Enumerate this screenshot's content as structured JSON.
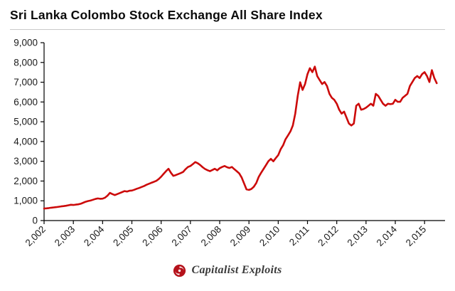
{
  "title": "Sri Lanka Colombo Stock Exchange All Share Index",
  "footer": {
    "brand": "Capitalist Exploits",
    "logo_icon": "capitalist-exploits-swirl-icon"
  },
  "colors": {
    "line": "#cc0a0a",
    "axis": "#000000",
    "tick_text": "#1a1a1a",
    "divider": "#c9c9c9",
    "logo": "#b5121b",
    "brand_text": "#3a3a3a"
  },
  "chart_data": {
    "type": "line",
    "title": "Sri Lanka Colombo Stock Exchange All Share Index",
    "xlabel": "",
    "ylabel": "",
    "legend": null,
    "grid": false,
    "line_color": "#cc0a0a",
    "ylim": [
      0,
      9000
    ],
    "xlim": [
      2002,
      2015.7
    ],
    "yticks": [
      0,
      1000,
      2000,
      3000,
      4000,
      5000,
      6000,
      7000,
      8000,
      9000
    ],
    "xticks": [
      2002,
      2003,
      2004,
      2005,
      2006,
      2007,
      2008,
      2009,
      2010,
      2011,
      2012,
      2013,
      2014,
      2015
    ],
    "x_start": 2002.0,
    "x_step": 0.08333,
    "x_unit": "monthly (Jan 2002 - Jun 2015), decimal years",
    "values": [
      610,
      620,
      635,
      650,
      665,
      680,
      700,
      715,
      730,
      750,
      775,
      800,
      790,
      805,
      820,
      850,
      900,
      950,
      985,
      1010,
      1050,
      1090,
      1120,
      1100,
      1110,
      1160,
      1260,
      1400,
      1340,
      1290,
      1340,
      1390,
      1440,
      1490,
      1470,
      1510,
      1520,
      1560,
      1610,
      1650,
      1700,
      1750,
      1810,
      1860,
      1910,
      1960,
      2010,
      2100,
      2220,
      2360,
      2500,
      2620,
      2420,
      2260,
      2300,
      2350,
      2400,
      2460,
      2600,
      2710,
      2760,
      2860,
      2960,
      2900,
      2810,
      2700,
      2610,
      2550,
      2500,
      2560,
      2620,
      2540,
      2650,
      2710,
      2760,
      2700,
      2660,
      2710,
      2600,
      2500,
      2390,
      2180,
      1880,
      1580,
      1550,
      1600,
      1710,
      1900,
      2210,
      2420,
      2610,
      2810,
      3010,
      3120,
      3000,
      3160,
      3310,
      3610,
      3810,
      4110,
      4310,
      4510,
      4810,
      5410,
      6310,
      7000,
      6610,
      6910,
      7410,
      7710,
      7510,
      7790,
      7310,
      7110,
      6910,
      7010,
      6810,
      6410,
      6210,
      6110,
      5910,
      5610,
      5410,
      5510,
      5210,
      4910,
      4810,
      4910,
      5810,
      5910,
      5610,
      5640,
      5710,
      5810,
      5910,
      5810,
      6410,
      6310,
      6110,
      5910,
      5810,
      5910,
      5890,
      5910,
      6110,
      6010,
      6010,
      6210,
      6310,
      6410,
      6810,
      7010,
      7210,
      7310,
      7210,
      7410,
      7510,
      7310,
      7010,
      7610,
      7210,
      6950
    ]
  }
}
